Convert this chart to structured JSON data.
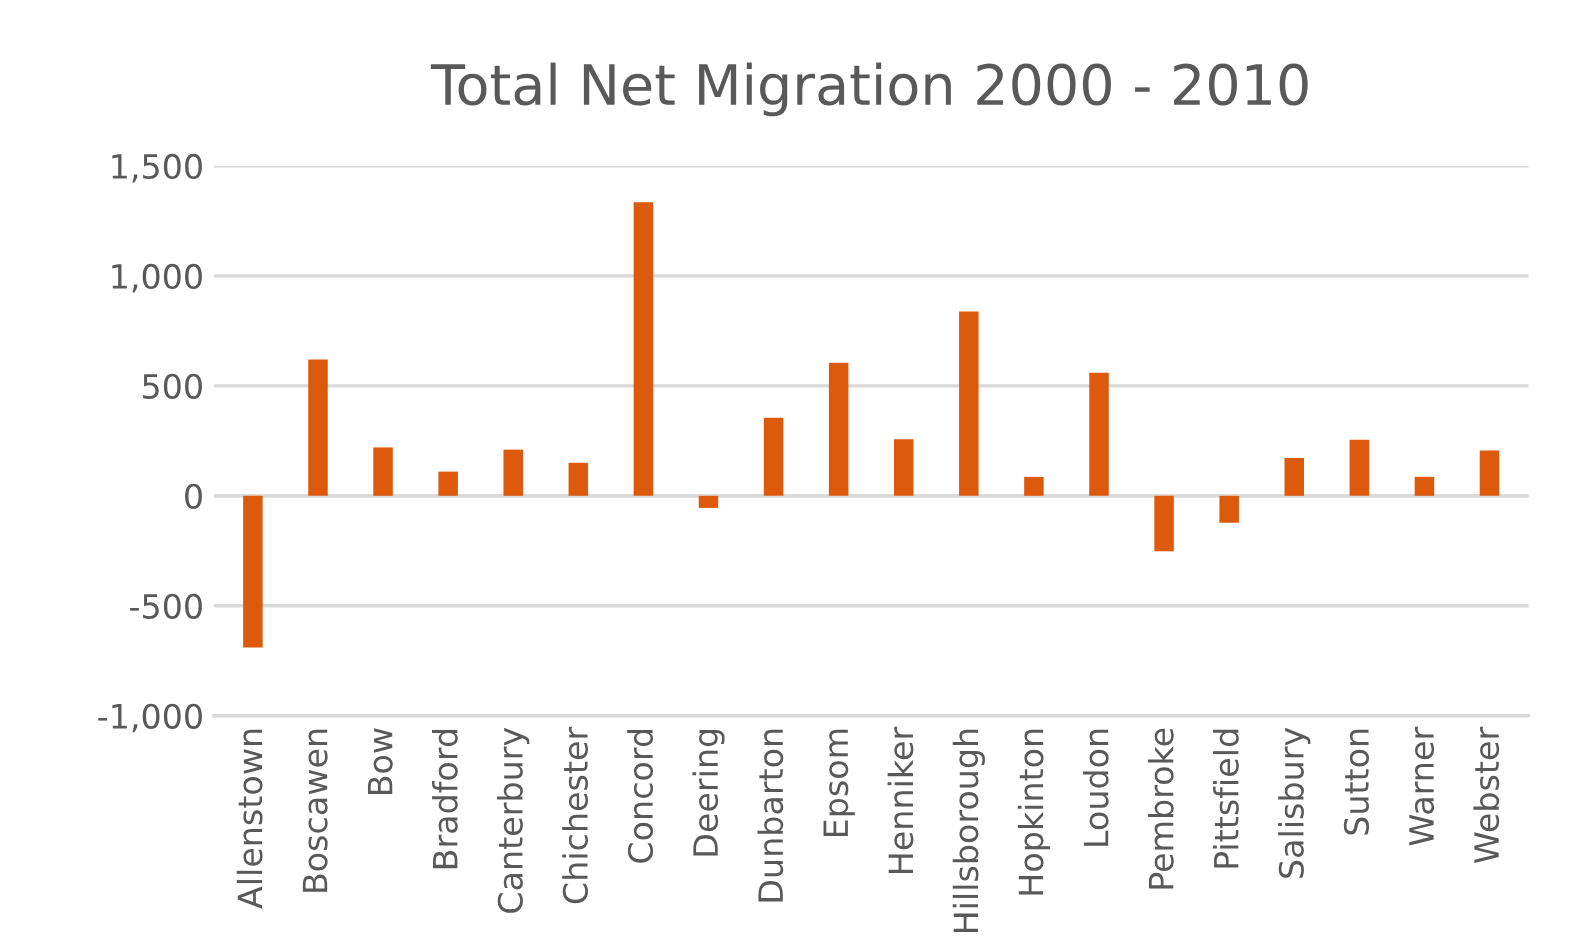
{
  "chart_data": {
    "type": "bar",
    "title": "Total Net Migration 2000 - 2010",
    "categories": [
      "Allenstown",
      "Boscawen",
      "Bow",
      "Bradford",
      "Canterbury",
      "Chichester",
      "Concord",
      "Deering",
      "Dunbarton",
      "Epsom",
      "Henniker",
      "Hillsborough",
      "Hopkinton",
      "Loudon",
      "Pembroke",
      "Pittsfield",
      "Salisbury",
      "Sutton",
      "Warner",
      "Webster"
    ],
    "values": [
      -690,
      620,
      220,
      110,
      210,
      150,
      1335,
      -55,
      355,
      605,
      257,
      838,
      86,
      559,
      -252,
      -123,
      172,
      255,
      86,
      206
    ],
    "color": "#dd5a0d",
    "ylim": [
      -1000,
      1500
    ],
    "yticks": [
      {
        "value": -1000,
        "label": "-1,000"
      },
      {
        "value": -500,
        "label": "-500"
      },
      0,
      500,
      {
        "value": 1000,
        "label": "1,000"
      },
      {
        "value": 1500,
        "label": "1,500"
      }
    ],
    "grid": "y"
  }
}
